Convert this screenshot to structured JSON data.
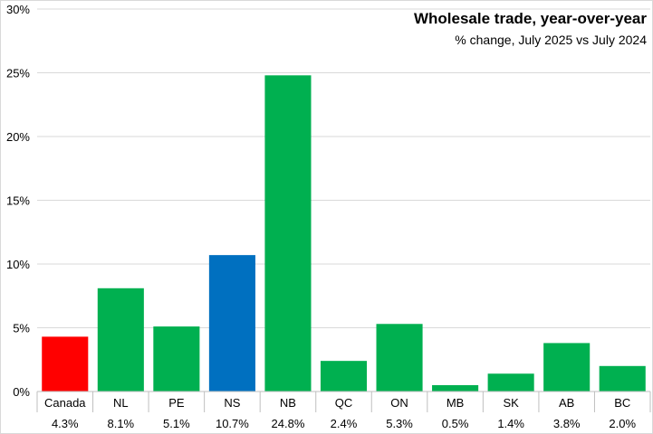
{
  "chart_data": {
    "type": "bar",
    "title": "Wholesale trade, year-over-year",
    "subtitle": "% change, July 2025 vs July 2024",
    "categories": [
      "Canada",
      "NL",
      "PE",
      "NS",
      "NB",
      "QC",
      "ON",
      "MB",
      "SK",
      "AB",
      "BC"
    ],
    "values": [
      4.3,
      8.1,
      5.1,
      10.7,
      24.8,
      2.4,
      5.3,
      0.5,
      1.4,
      3.8,
      2.0
    ],
    "value_labels": [
      "4.3%",
      "8.1%",
      "5.1%",
      "10.7%",
      "24.8%",
      "2.4%",
      "5.3%",
      "0.5%",
      "1.4%",
      "3.8%",
      "2.0%"
    ],
    "bar_colors": [
      "#ff0000",
      "#00b050",
      "#00b050",
      "#0070c0",
      "#00b050",
      "#00b050",
      "#00b050",
      "#00b050",
      "#00b050",
      "#00b050",
      "#00b050"
    ],
    "yticks": [
      0,
      5,
      10,
      15,
      20,
      25,
      30
    ],
    "ytick_labels": [
      "0%",
      "5%",
      "10%",
      "15%",
      "20%",
      "25%",
      "30%"
    ],
    "ylim": [
      0,
      30
    ],
    "xlabel": "",
    "ylabel": "",
    "grid": true,
    "legend": "none"
  }
}
